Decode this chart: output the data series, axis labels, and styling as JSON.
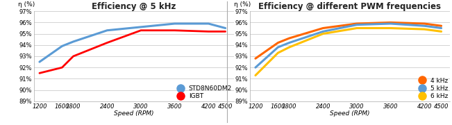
{
  "chart1": {
    "title": "Efficiency @ 5 kHz",
    "ylabel": "η (%)",
    "xlabel": "Speed (RPM)",
    "x": [
      1200,
      1600,
      1800,
      2400,
      3000,
      3600,
      4200,
      4500
    ],
    "series": [
      {
        "label": "STD8N60DM2",
        "color": "#5B9BD5",
        "linewidth": 2.2,
        "y": [
          92.5,
          93.9,
          94.3,
          95.3,
          95.6,
          95.9,
          95.9,
          95.5
        ]
      },
      {
        "label": "IGBT",
        "color": "#FF0000",
        "linewidth": 2.0,
        "y": [
          91.5,
          92.0,
          93.0,
          94.2,
          95.3,
          95.3,
          95.2,
          95.2
        ]
      }
    ],
    "ylim": [
      89,
      97
    ],
    "yticks": [
      89,
      90,
      91,
      92,
      93,
      94,
      95,
      96,
      97
    ],
    "ytick_labels": [
      "89%",
      "90%",
      "91%",
      "92%",
      "93%",
      "94%",
      "95%",
      "96%",
      "97%"
    ],
    "xticks": [
      1200,
      1600,
      1800,
      2400,
      3000,
      3600,
      4200,
      4500
    ],
    "legend_marker_size": 9
  },
  "chart2": {
    "title": "Efficiency @ different PWM frequencies",
    "ylabel": "η (%)",
    "xlabel": "Speed (RPM)",
    "x": [
      1200,
      1600,
      1800,
      2400,
      3000,
      3600,
      4200,
      4500
    ],
    "series": [
      {
        "label": "4 kHz",
        "color": "#FF6600",
        "linewidth": 2.2,
        "y": [
          92.8,
          94.2,
          94.6,
          95.5,
          95.9,
          96.0,
          95.9,
          95.7
        ]
      },
      {
        "label": "5 kHz",
        "color": "#5B9BD5",
        "linewidth": 2.2,
        "y": [
          92.0,
          93.8,
          94.2,
          95.2,
          95.8,
          95.9,
          95.7,
          95.5
        ]
      },
      {
        "label": "6 kHz",
        "color": "#FFC000",
        "linewidth": 2.2,
        "y": [
          91.3,
          93.3,
          93.8,
          95.0,
          95.5,
          95.5,
          95.4,
          95.2
        ]
      }
    ],
    "ylim": [
      89,
      97
    ],
    "yticks": [
      89,
      90,
      91,
      92,
      93,
      94,
      95,
      96,
      97
    ],
    "ytick_labels": [
      "89%",
      "90%",
      "91%",
      "92%",
      "93%",
      "94%",
      "95%",
      "96%",
      "97%"
    ],
    "xticks": [
      1200,
      1600,
      1800,
      2400,
      3000,
      3600,
      4200,
      4500
    ],
    "legend_marker_size": 9
  },
  "bg_color": "#FFFFFF",
  "grid_color": "#CCCCCC",
  "title_fontsize": 8.5,
  "label_fontsize": 6.5,
  "tick_fontsize": 6.0,
  "legend_fontsize": 6.5,
  "divider_color": "#AAAAAA"
}
